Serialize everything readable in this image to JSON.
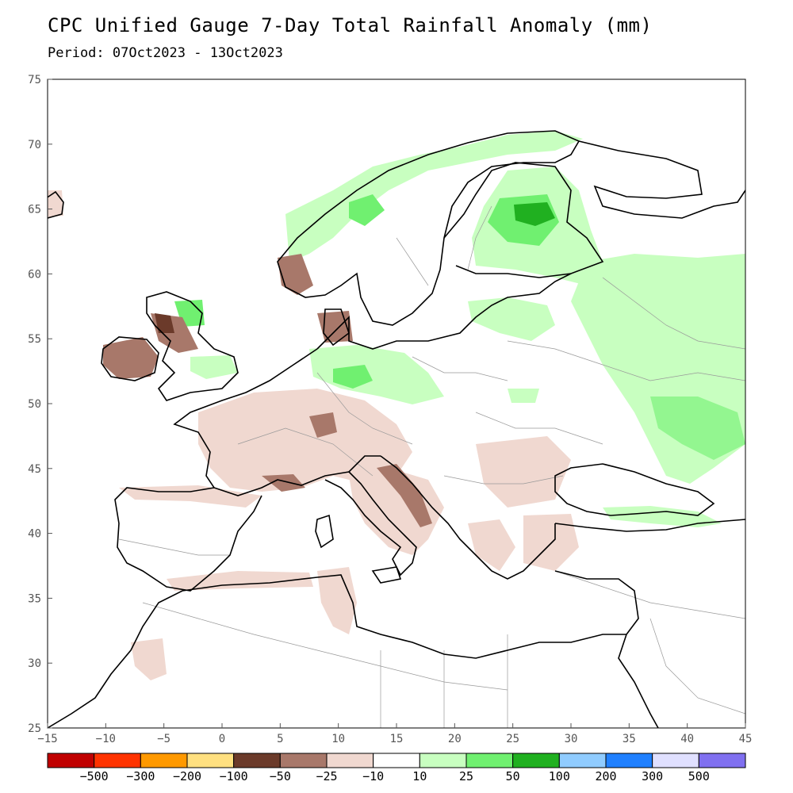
{
  "header": {
    "title": "CPC Unified Gauge 7-Day Total Rainfall Anomaly (mm)",
    "period": "Period: 07Oct2023 - 13Oct2023"
  },
  "map": {
    "lon_range": [
      -15,
      45
    ],
    "lat_range": [
      25,
      75
    ],
    "lon_ticks": [
      "−15",
      "−10",
      "−5",
      "0",
      "5",
      "10",
      "15",
      "20",
      "25",
      "30",
      "35",
      "40",
      "45"
    ],
    "lat_ticks": [
      "25",
      "30",
      "35",
      "40",
      "45",
      "50",
      "55",
      "60",
      "65",
      "70",
      "75"
    ]
  },
  "legend": {
    "colors": [
      "#c00000",
      "#ff3300",
      "#ff9900",
      "#ffe080",
      "#6b3a2a",
      "#a8786a",
      "#f0d8d0",
      "#ffffff",
      "#c8ffc0",
      "#70f070",
      "#20b020",
      "#90ccff",
      "#2080ff",
      "#e0e0ff",
      "#8070f0"
    ],
    "labels": [
      "−500",
      "−300",
      "−200",
      "−100",
      "−50",
      "−25",
      "−10",
      "10",
      "25",
      "50",
      "100",
      "200",
      "300",
      "500"
    ]
  },
  "colors": {
    "dry_light": "#f0d8d0",
    "dry_mid": "#a8786a",
    "dry_dark": "#6b3a2a",
    "wet_light": "#c8ffc0",
    "wet_mid": "#70f070",
    "wet_dark": "#20b020"
  }
}
